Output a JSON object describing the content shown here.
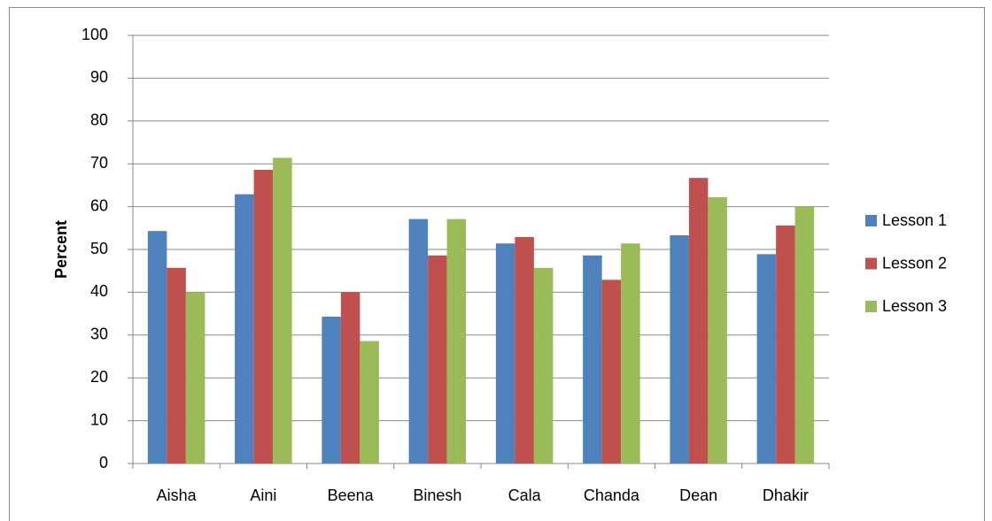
{
  "chart_data": {
    "type": "bar",
    "y_label": "Percent",
    "categories": [
      "Aisha",
      "Aini",
      "Beena",
      "Binesh",
      "Cala",
      "Chanda",
      "Dean",
      "Dhakir"
    ],
    "series": [
      {
        "name": "Lesson 1",
        "color": "#4f81bd",
        "values": [
          54.3,
          62.9,
          34.3,
          57.1,
          51.4,
          48.6,
          53.3,
          48.9
        ]
      },
      {
        "name": "Lesson 2",
        "color": "#c0504d",
        "values": [
          45.7,
          68.6,
          40,
          48.6,
          52.9,
          42.9,
          66.7,
          55.6
        ]
      },
      {
        "name": "Lesson 3",
        "color": "#9bbb59",
        "values": [
          40,
          71.4,
          28.6,
          57.1,
          45.7,
          51.4,
          62.2,
          60
        ]
      }
    ],
    "ylim": [
      0,
      100
    ],
    "yticks": [
      0,
      10,
      20,
      30,
      40,
      50,
      60,
      70,
      80,
      90,
      100
    ],
    "grid": true,
    "legend": "right"
  }
}
